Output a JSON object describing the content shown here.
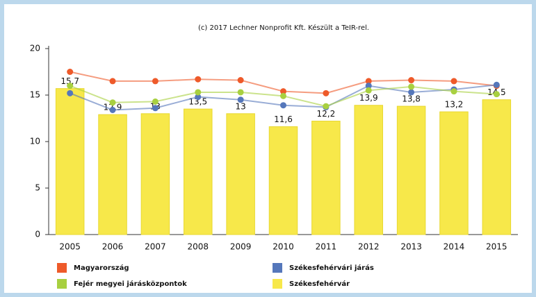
{
  "chart_data": {
    "type": "bar",
    "title": "(c) 2017 Lechner Nonprofit Kft. Készült a TeIR-rel.",
    "categories": [
      "2005",
      "2006",
      "2007",
      "2008",
      "2009",
      "2010",
      "2011",
      "2012",
      "2013",
      "2014",
      "2015"
    ],
    "series": [
      {
        "name": "Magyarország",
        "type": "line",
        "color": "#ee5a2a",
        "values": [
          17.5,
          16.5,
          16.5,
          16.7,
          16.6,
          15.4,
          15.2,
          16.5,
          16.6,
          16.5,
          16.0
        ]
      },
      {
        "name": "Székesfehérvári járás",
        "type": "line",
        "color": "#5577bb",
        "values": [
          15.2,
          13.4,
          13.6,
          14.8,
          14.5,
          13.9,
          13.7,
          16.0,
          15.3,
          15.6,
          16.1
        ]
      },
      {
        "name": "Fejér megyei járásközpontok",
        "type": "line",
        "color": "#a8d040",
        "values": [
          16.0,
          14.2,
          14.3,
          15.3,
          15.3,
          14.9,
          13.8,
          15.5,
          15.9,
          15.4,
          15.1
        ]
      },
      {
        "name": "Székesfehérvár",
        "type": "bar",
        "color": "#f7e84a",
        "values": [
          15.7,
          12.9,
          13,
          13.5,
          13,
          11.6,
          12.2,
          13.9,
          13.8,
          13.2,
          14.5
        ],
        "value_labels": [
          "15,7",
          "12,9",
          "13",
          "13,5",
          "13",
          "11,6",
          "12,2",
          "13,9",
          "13,8",
          "13,2",
          "14,5"
        ]
      }
    ],
    "ylim": [
      0,
      20
    ],
    "yticks": [
      0,
      5,
      10,
      15,
      20
    ]
  }
}
